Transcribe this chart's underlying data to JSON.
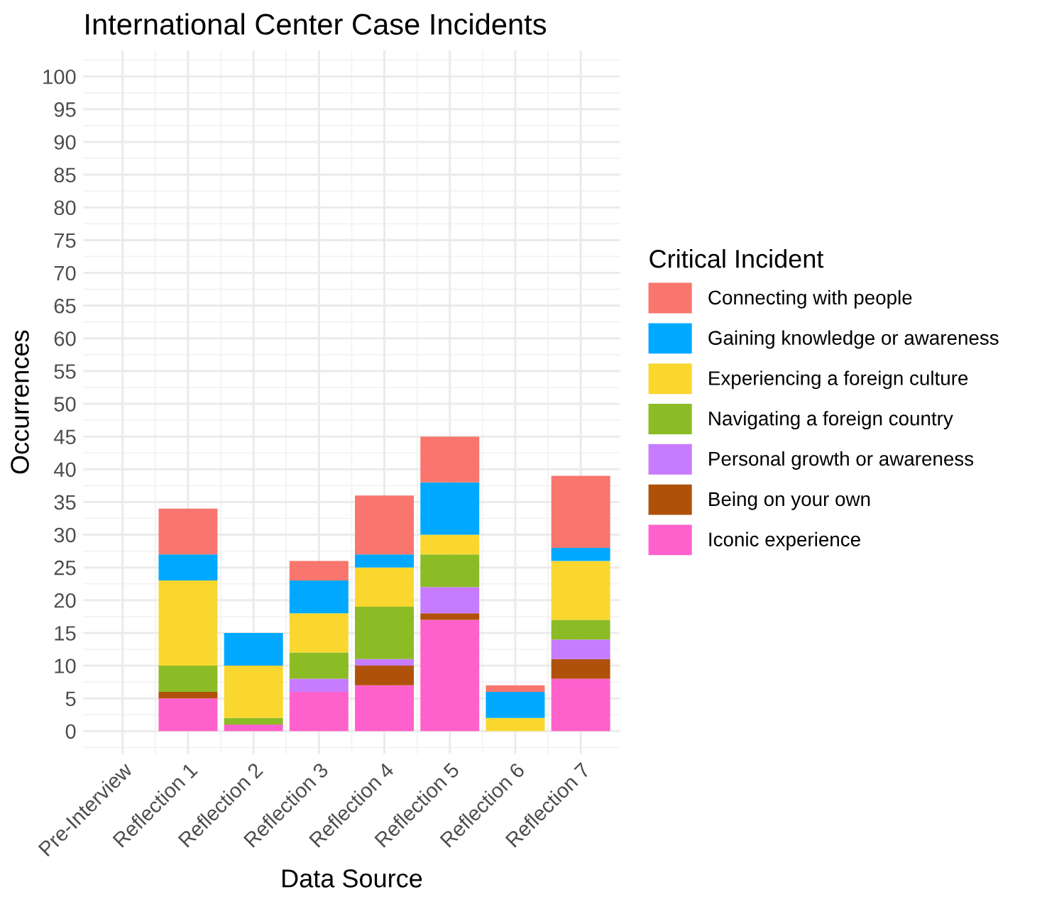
{
  "chart_data": {
    "type": "bar",
    "stacked": true,
    "title": "International Center Case Incidents",
    "xlabel": "Data Source",
    "ylabel": "Occurrences",
    "legend_title": "Critical Incident",
    "categories": [
      "Pre-Interview",
      "Reflection 1",
      "Reflection 2",
      "Reflection 3",
      "Reflection 4",
      "Reflection 5",
      "Reflection 6",
      "Reflection 7"
    ],
    "series": [
      {
        "name": "Iconic experience",
        "color": "#ff61cc",
        "values": [
          0,
          5,
          1,
          6,
          7,
          17,
          0,
          8
        ]
      },
      {
        "name": "Being on your own",
        "color": "#b0510a",
        "values": [
          0,
          1,
          0,
          0,
          3,
          1,
          0,
          3
        ]
      },
      {
        "name": "Personal growth or awareness",
        "color": "#c77cff",
        "values": [
          0,
          0,
          0,
          2,
          1,
          4,
          0,
          3
        ]
      },
      {
        "name": "Navigating a foreign country",
        "color": "#8bbc26",
        "values": [
          0,
          4,
          1,
          4,
          8,
          5,
          0,
          3
        ]
      },
      {
        "name": "Experiencing a foreign culture",
        "color": "#fad72e",
        "values": [
          0,
          13,
          8,
          6,
          6,
          3,
          2,
          9
        ]
      },
      {
        "name": "Gaining knowledge or awareness",
        "color": "#00a9ff",
        "values": [
          0,
          4,
          5,
          5,
          2,
          8,
          4,
          2
        ]
      },
      {
        "name": "Connecting with people",
        "color": "#f8766d",
        "values": [
          0,
          7,
          0,
          3,
          9,
          7,
          1,
          11
        ]
      }
    ],
    "ylim": [
      -3.5,
      104
    ],
    "yticks": [
      0,
      5,
      10,
      15,
      20,
      25,
      30,
      35,
      40,
      45,
      50,
      55,
      60,
      65,
      70,
      75,
      80,
      85,
      90,
      95,
      100
    ],
    "grid": true,
    "legend": "right"
  }
}
